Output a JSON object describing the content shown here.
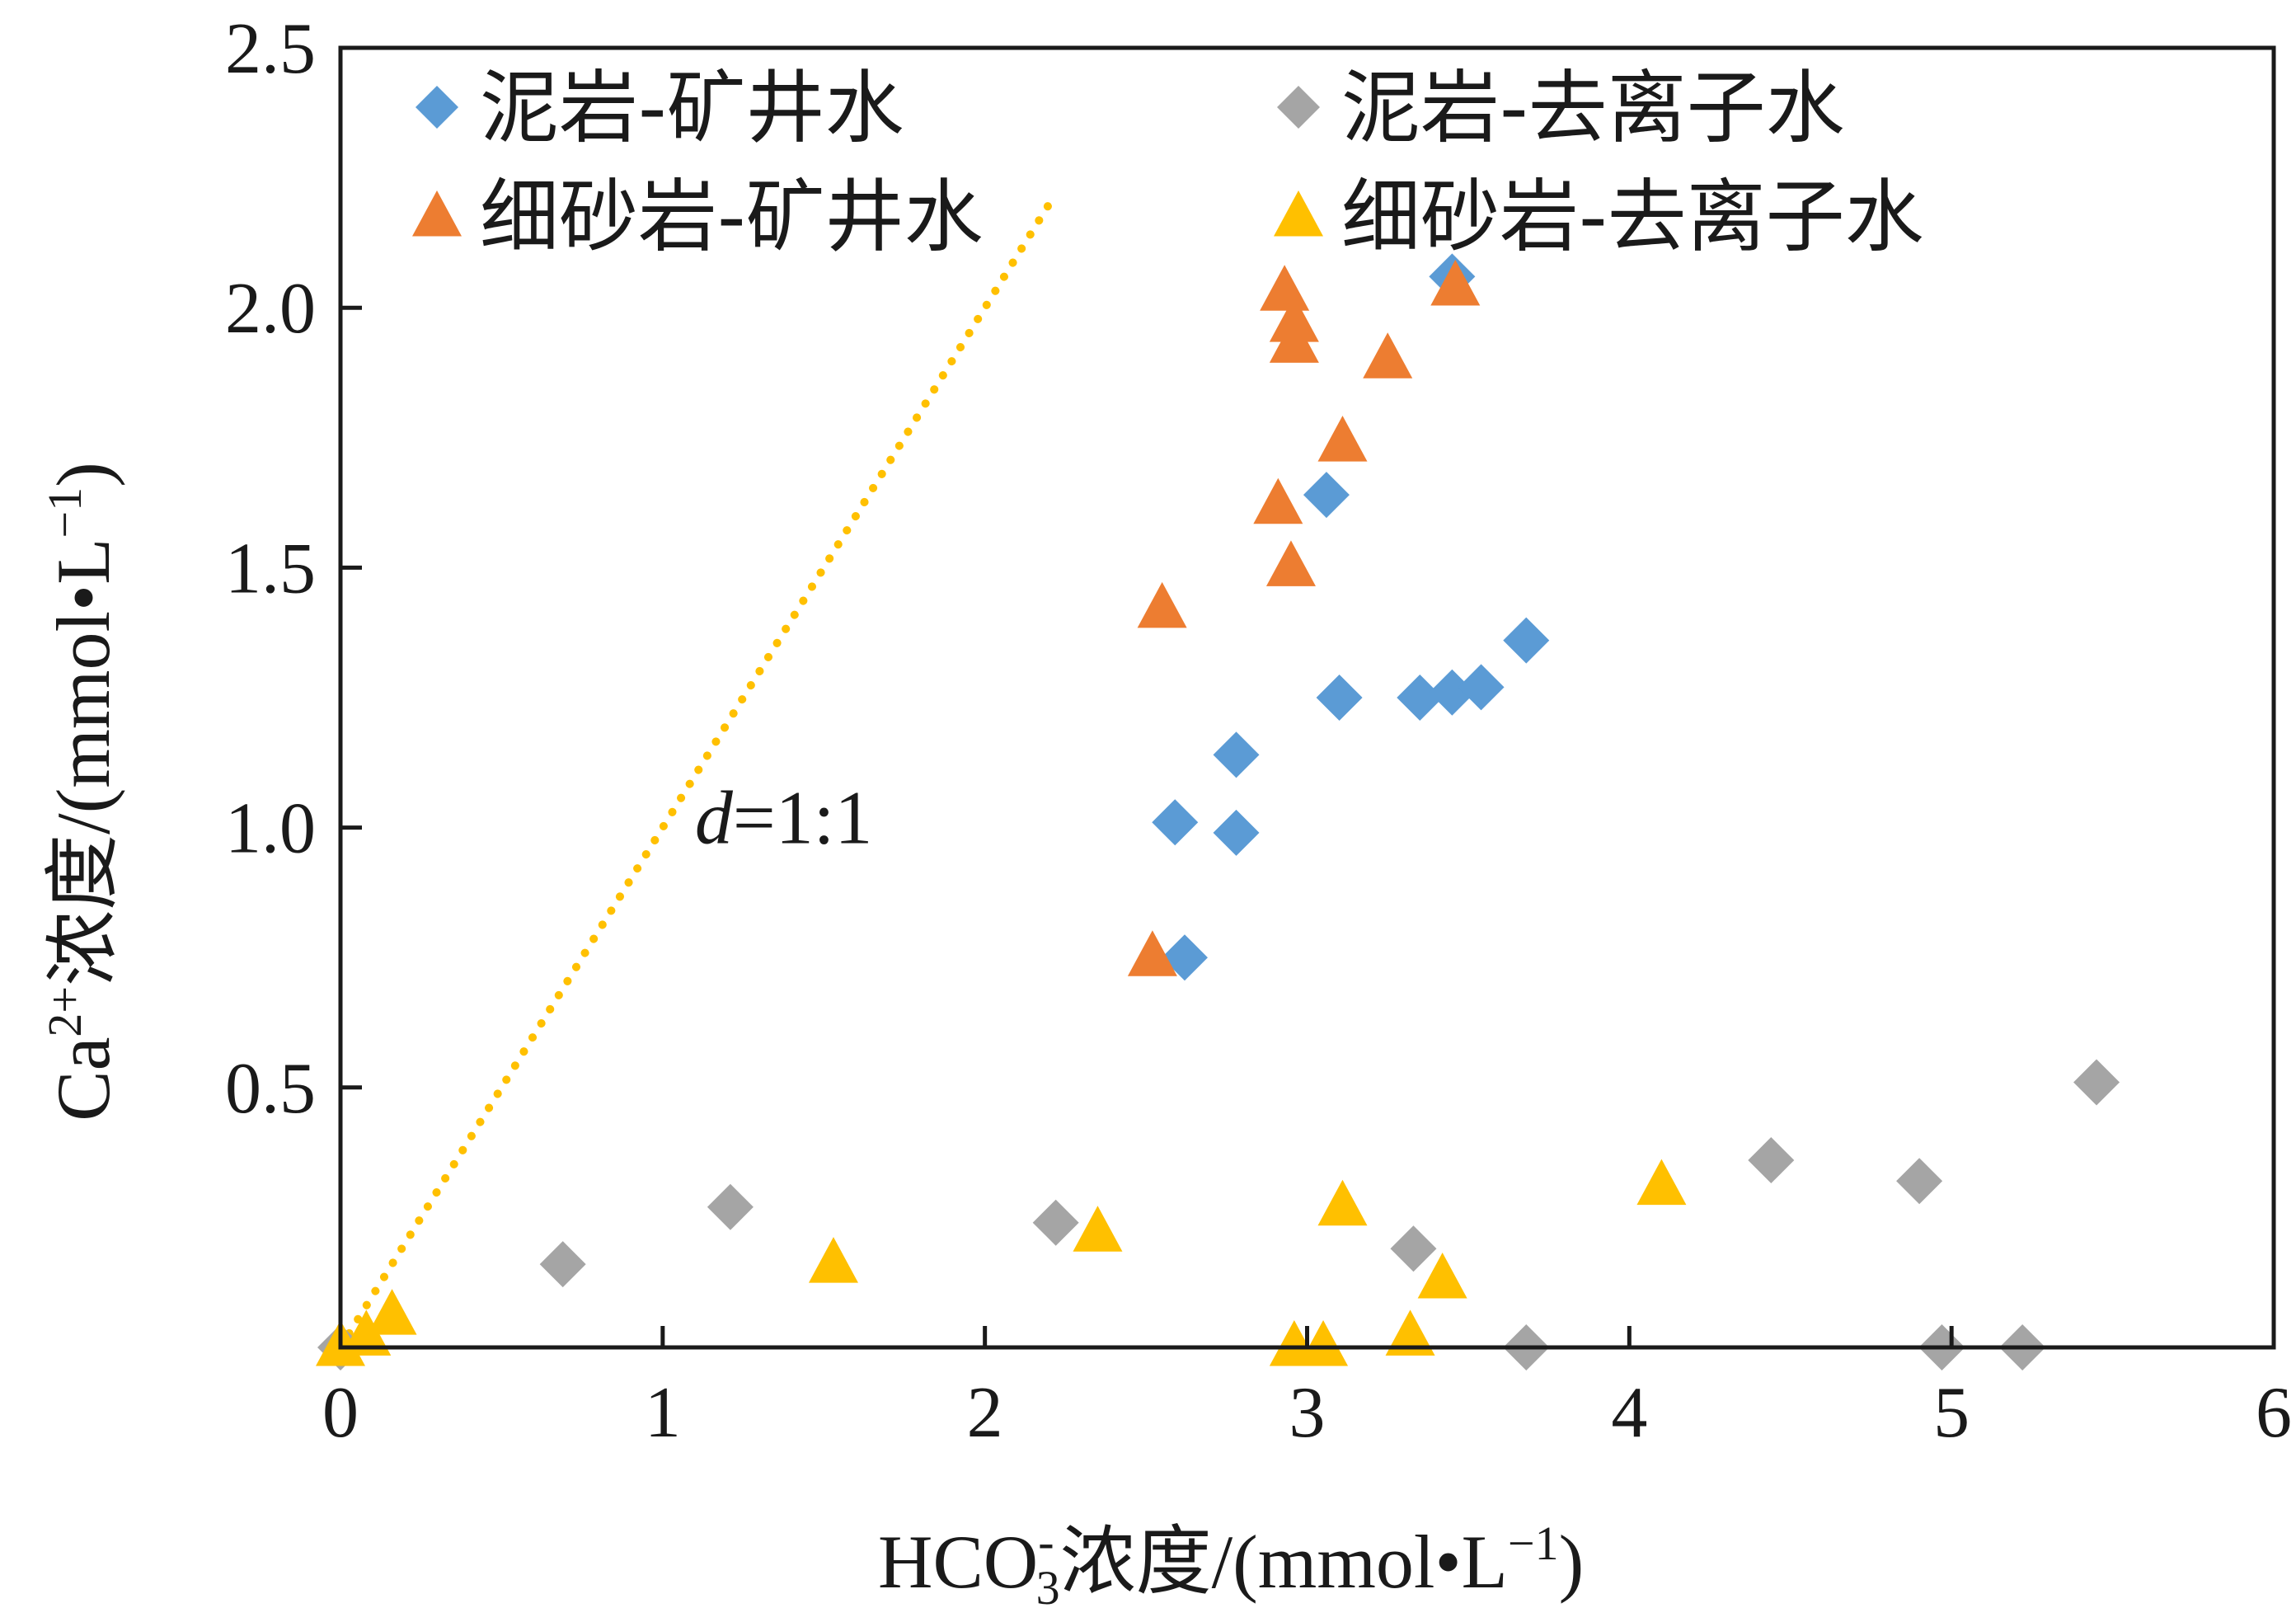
{
  "chart_data": {
    "type": "scatter",
    "xlabel": {
      "main": "HCO",
      "sub": "3",
      "sup": "-",
      "rest": "浓度/(mmol•L",
      "unit_sup": "−1",
      "close": ")"
    },
    "ylabel": {
      "main": "Ca",
      "sup": "2+",
      "rest": "浓度/(mmol•L",
      "unit_sup": "−1",
      "close": ")"
    },
    "xlim": [
      0,
      6
    ],
    "ylim": [
      0,
      2.5
    ],
    "x_ticks": [
      {
        "value": 0,
        "label": "0"
      },
      {
        "value": 1,
        "label": "1"
      },
      {
        "value": 2,
        "label": "2"
      },
      {
        "value": 3,
        "label": "3"
      },
      {
        "value": 4,
        "label": "4"
      },
      {
        "value": 5,
        "label": "5"
      },
      {
        "value": 6,
        "label": "6"
      }
    ],
    "y_ticks": [
      {
        "value": 0.5,
        "label": "0.5"
      },
      {
        "value": 1.0,
        "label": "1.0"
      },
      {
        "value": 1.5,
        "label": "1.5"
      },
      {
        "value": 2.0,
        "label": "2.0"
      },
      {
        "value": 2.5,
        "label": "2.5"
      }
    ],
    "grid": false,
    "legend_position": "top",
    "series": [
      {
        "name": "泥岩-矿井水",
        "marker": "diamond",
        "color": "#5b9bd5",
        "points": [
          [
            2.59,
            1.01
          ],
          [
            2.78,
            1.14
          ],
          [
            2.78,
            0.99
          ],
          [
            2.62,
            0.75
          ],
          [
            3.06,
            1.64
          ],
          [
            3.1,
            1.25
          ],
          [
            3.35,
            1.25
          ],
          [
            3.45,
            1.26
          ],
          [
            3.54,
            1.27
          ],
          [
            3.68,
            1.36
          ],
          [
            3.45,
            2.06
          ]
        ]
      },
      {
        "name": "泥岩-去离子水",
        "marker": "diamond",
        "color": "#a5a5a5",
        "points": [
          [
            0.0,
            0.0
          ],
          [
            0.69,
            0.16
          ],
          [
            1.21,
            0.27
          ],
          [
            2.22,
            0.24
          ],
          [
            3.33,
            0.19
          ],
          [
            3.68,
            0.0
          ],
          [
            4.44,
            0.36
          ],
          [
            4.9,
            0.32
          ],
          [
            4.97,
            0.0
          ],
          [
            5.22,
            0.0
          ],
          [
            5.45,
            0.51
          ]
        ]
      },
      {
        "name": "细砂岩-矿井水",
        "marker": "triangle",
        "color": "#ed7d31",
        "points": [
          [
            2.55,
            1.42
          ],
          [
            2.52,
            0.75
          ],
          [
            2.91,
            1.62
          ],
          [
            2.95,
            1.5
          ],
          [
            2.93,
            2.03
          ],
          [
            2.96,
            1.97
          ],
          [
            2.96,
            1.93
          ],
          [
            3.11,
            1.74
          ],
          [
            3.25,
            1.9
          ],
          [
            3.46,
            2.04
          ]
        ]
      },
      {
        "name": "细砂岩-去离子水",
        "marker": "triangle",
        "color": "#ffc000",
        "points": [
          [
            0.0,
            0.0
          ],
          [
            0.08,
            0.02
          ],
          [
            0.16,
            0.06
          ],
          [
            1.53,
            0.16
          ],
          [
            2.35,
            0.22
          ],
          [
            2.96,
            0.0
          ],
          [
            3.05,
            0.0
          ],
          [
            3.11,
            0.27
          ],
          [
            3.32,
            0.02
          ],
          [
            3.42,
            0.13
          ],
          [
            4.1,
            0.31
          ]
        ]
      }
    ],
    "reference_line": {
      "label_italic": "d",
      "label_rest": "=1:1",
      "color": "#ffc000",
      "points": [
        [
          0.0,
          0.0
        ],
        [
          2.2,
          2.2
        ]
      ],
      "label_position": [
        1.1,
        0.97
      ]
    }
  }
}
